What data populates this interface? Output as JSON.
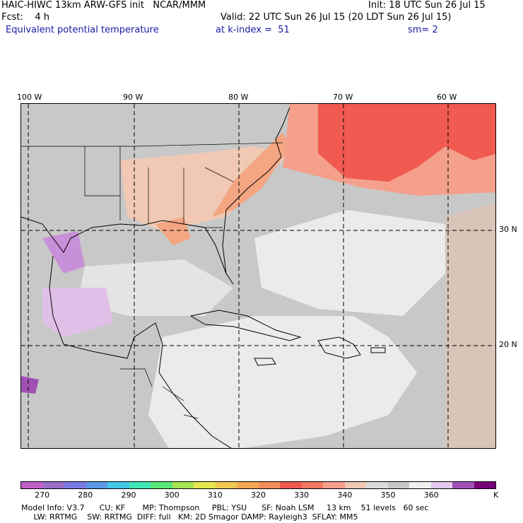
{
  "header": {
    "line1_left": "HAIC-HIWC 13km ARW-GFS init   NCAR/MMM",
    "line1_right": "Init: 18 UTC Sun 26 Jul 15",
    "line2_left": "Fcst:    4 h",
    "line2_right": "Valid: 22 UTC Sun 26 Jul 15 (20 LDT Sun 26 Jul 15)",
    "line3_left": "Equivalent potential temperature",
    "line3_mid": "at k-index =  51",
    "line3_right": "sm= 2"
  },
  "map": {
    "lon_labels": [
      "100 W",
      "90 W",
      "80 W",
      "70 W",
      "60 W"
    ],
    "lat_labels": [
      "30 N",
      "20 N"
    ],
    "field_colors": {
      "land_gray": "#c8c8c8",
      "ocean_light": "#ebebeb",
      "warm_orange": "#f4a582",
      "hot_red": "#f05a50",
      "tan": "#d9c4b8",
      "purple": "#c890d8"
    }
  },
  "colorbar": {
    "colors": [
      "#c060c8",
      "#9b6ec8",
      "#7a7ae6",
      "#5a9ae6",
      "#40c8e6",
      "#40e6b4",
      "#5ae678",
      "#a6e650",
      "#e6e650",
      "#f0c850",
      "#f4a850",
      "#f48c5a",
      "#f05a50",
      "#f07860",
      "#f4a08c",
      "#f0c8b4",
      "#dcdcdc",
      "#c8c8c8",
      "#f0f0f0",
      "#e6c8f0",
      "#a050b4",
      "#780078"
    ],
    "tick_labels": [
      "270",
      "280",
      "290",
      "300",
      "310",
      "320",
      "330",
      "340",
      "350",
      "360"
    ],
    "unit": "K"
  },
  "footer": {
    "line1": "Model Info: V3.7      CU: KF       MP: Thompson     PBL: YSU      SF: Noah LSM     13 km    51 levels   60 sec",
    "line2": "     LW: RRTMG    SW: RRTMG  DIFF: full   KM: 2D Smagor DAMP: Rayleigh3  SFLAY: MM5"
  }
}
